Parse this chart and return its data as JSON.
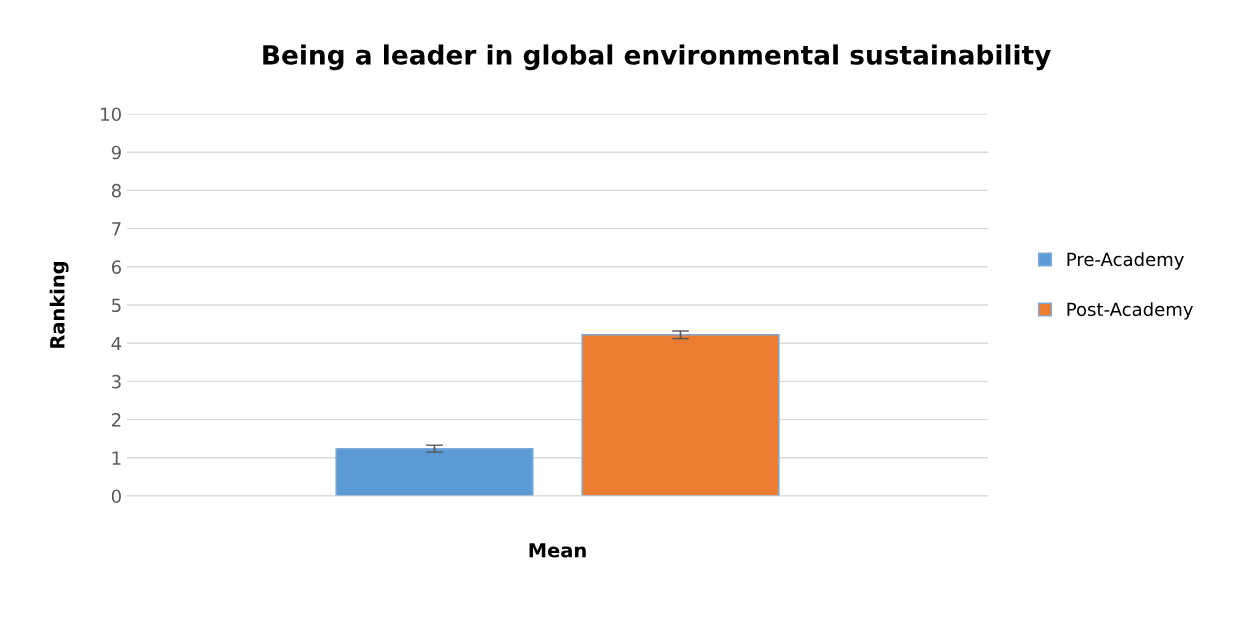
{
  "chart_data": {
    "type": "bar",
    "title": "Being a leader in global environmental sustainability",
    "xlabel": "Mean",
    "ylabel": "Ranking",
    "categories": [
      null
    ],
    "series": [
      {
        "name": "Pre-Academy",
        "color": "#5b9bd5",
        "values": [
          1.24
        ],
        "errors": [
          0.09
        ]
      },
      {
        "name": "Post-Academy",
        "color": "#ed7d31",
        "values": [
          4.22
        ],
        "errors": [
          0.1
        ]
      }
    ],
    "ylim": [
      0,
      10
    ],
    "yticks": [
      0,
      1,
      2,
      3,
      4,
      5,
      6,
      7,
      8,
      9,
      10
    ],
    "grid": "y",
    "legend": "right"
  }
}
